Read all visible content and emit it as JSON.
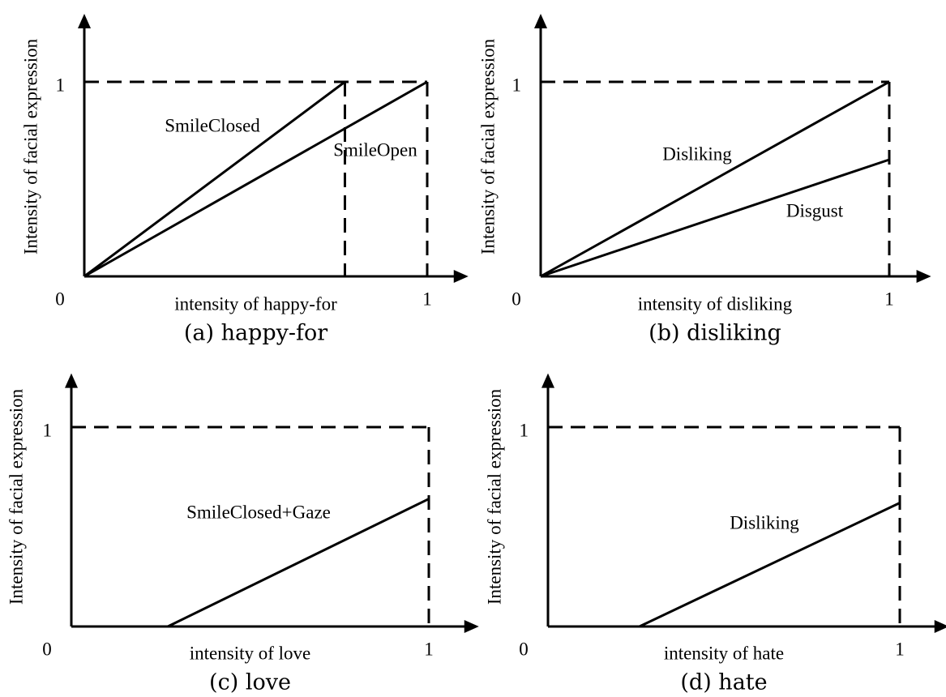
{
  "chart_data": [
    {
      "type": "line",
      "caption": "(a) happy-for",
      "x_label": "intensity of happy-for",
      "y_label": "Intensity of facial expression",
      "xlim": [
        0,
        1.12
      ],
      "ylim": [
        0,
        1.35
      ],
      "xticks": [
        0,
        1
      ],
      "yticks": [
        1
      ],
      "series": [
        {
          "name": "SmileClosed",
          "color": "#000000",
          "x": [
            0,
            0.76
          ],
          "values": [
            0,
            1
          ]
        },
        {
          "name": "SmileOpen",
          "color": "#000000",
          "x": [
            0,
            1
          ],
          "values": [
            0,
            1
          ]
        }
      ]
    },
    {
      "type": "line",
      "caption": "(b) disliking",
      "x_label": "intensity of disliking",
      "y_label": "Intensity of facial expression",
      "xlim": [
        0,
        1.12
      ],
      "ylim": [
        0,
        1.35
      ],
      "xticks": [
        0,
        1
      ],
      "yticks": [
        1
      ],
      "series": [
        {
          "name": "Disliking",
          "color": "#000000",
          "x": [
            0,
            1
          ],
          "values": [
            0,
            1
          ]
        },
        {
          "name": "Disgust",
          "color": "#000000",
          "x": [
            0,
            1
          ],
          "values": [
            0,
            0.6
          ]
        }
      ]
    },
    {
      "type": "line",
      "caption": "(c) love",
      "x_label": "intensity of love",
      "y_label": "Intensity of facial expression",
      "xlim": [
        0,
        1.14
      ],
      "ylim": [
        0,
        1.27
      ],
      "xticks": [
        0,
        1
      ],
      "yticks": [
        1
      ],
      "series": [
        {
          "name": "SmileClosed+Gaze",
          "color": "#000000",
          "x": [
            0.27,
            1
          ],
          "values": [
            0,
            0.64
          ]
        }
      ]
    },
    {
      "type": "line",
      "caption": "(d) hate",
      "x_label": "intensity of hate",
      "y_label": "Intensity of facial expression",
      "xlim": [
        0,
        1.14
      ],
      "ylim": [
        0,
        1.27
      ],
      "xticks": [
        0,
        1
      ],
      "yticks": [
        1
      ],
      "series": [
        {
          "name": "Disliking",
          "color": "#000000",
          "x": [
            0.26,
            1
          ],
          "values": [
            0,
            0.62
          ]
        }
      ]
    }
  ]
}
